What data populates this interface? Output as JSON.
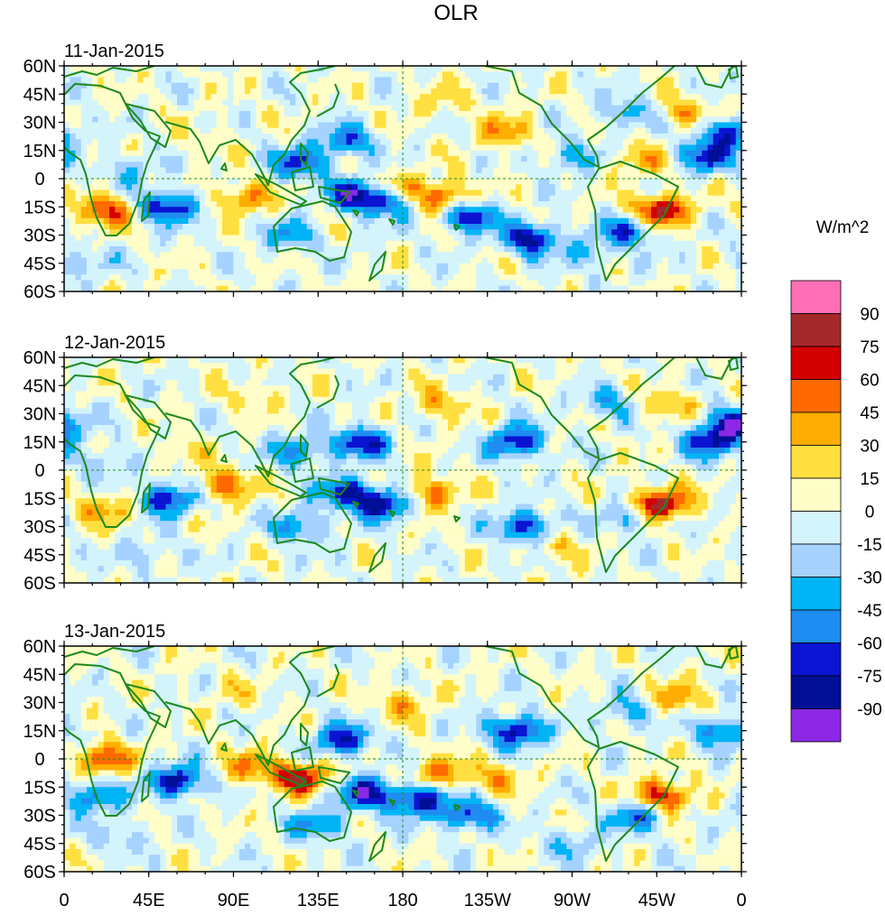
{
  "chart_data": {
    "type": "heatmap",
    "title": "OLR",
    "colorbar_title": "W/m^2",
    "colorbar_levels": [
      "90",
      "75",
      "60",
      "45",
      "30",
      "15",
      "0",
      "-15",
      "-30",
      "-45",
      "-60",
      "-75",
      "-90"
    ],
    "colorbar_colors": [
      "#ff6fb5",
      "#a5282a",
      "#d40000",
      "#ff6a00",
      "#ffad00",
      "#ffe040",
      "#fffdc8",
      "#d4f4fc",
      "#a6d2ff",
      "#00b4f5",
      "#1e8cf0",
      "#0a14d2",
      "#000f96",
      "#8c28e6"
    ],
    "x_ticks": [
      "0",
      "45E",
      "90E",
      "135E",
      "180",
      "135W",
      "90W",
      "45W",
      "0"
    ],
    "y_ticks": [
      "60N",
      "45N",
      "30N",
      "15N",
      "0",
      "15S",
      "30S",
      "45S",
      "60S"
    ],
    "xlim": [
      0,
      360
    ],
    "ylim": [
      -60,
      60
    ],
    "panels": [
      {
        "label": "11-Jan-2015",
        "seed": 11,
        "features": [
          {
            "lon": 215,
            "lat": -20,
            "v": -80
          },
          {
            "lon": 248,
            "lat": -32,
            "v": -85
          },
          {
            "lon": 175,
            "lat": -5,
            "v": 45
          },
          {
            "lon": 172,
            "lat": -12,
            "v": -70
          },
          {
            "lon": 155,
            "lat": -8,
            "v": -75
          },
          {
            "lon": 200,
            "lat": -10,
            "v": 70
          },
          {
            "lon": 96,
            "lat": -10,
            "v": 50
          },
          {
            "lon": 55,
            "lat": -15,
            "v": -80
          },
          {
            "lon": 22,
            "lat": -17,
            "v": 65
          },
          {
            "lon": 317,
            "lat": -17,
            "v": 85
          },
          {
            "lon": 300,
            "lat": -28,
            "v": -60
          },
          {
            "lon": 342,
            "lat": 12,
            "v": -70
          },
          {
            "lon": 352,
            "lat": 25,
            "v": -65
          },
          {
            "lon": 270,
            "lat": 12,
            "v": -40
          },
          {
            "lon": 305,
            "lat": 10,
            "v": 35
          },
          {
            "lon": 125,
            "lat": 8,
            "v": -65
          },
          {
            "lon": 150,
            "lat": 20,
            "v": -60
          },
          {
            "lon": 235,
            "lat": 25,
            "v": 40
          },
          {
            "lon": 300,
            "lat": 35,
            "v": -40
          },
          {
            "lon": 330,
            "lat": 35,
            "v": 40
          },
          {
            "lon": 35,
            "lat": 5,
            "v": -30
          },
          {
            "lon": 75,
            "lat": 20,
            "v": 15
          },
          {
            "lon": 120,
            "lat": -30,
            "v": -40
          },
          {
            "lon": 200,
            "lat": 40,
            "v": 20
          },
          {
            "lon": 10,
            "lat": -45,
            "v": -30
          },
          {
            "lon": 280,
            "lat": -40,
            "v": -30
          }
        ]
      },
      {
        "label": "12-Jan-2015",
        "seed": 12,
        "features": [
          {
            "lon": 170,
            "lat": -18,
            "v": -80
          },
          {
            "lon": 150,
            "lat": -12,
            "v": -70
          },
          {
            "lon": 158,
            "lat": 15,
            "v": -75
          },
          {
            "lon": 240,
            "lat": 15,
            "v": -80
          },
          {
            "lon": 245,
            "lat": -30,
            "v": -75
          },
          {
            "lon": 195,
            "lat": -12,
            "v": 55
          },
          {
            "lon": 85,
            "lat": -8,
            "v": 55
          },
          {
            "lon": 55,
            "lat": -15,
            "v": -80
          },
          {
            "lon": 22,
            "lat": -20,
            "v": 40
          },
          {
            "lon": 317,
            "lat": -18,
            "v": 90
          },
          {
            "lon": 300,
            "lat": -25,
            "v": -40
          },
          {
            "lon": 345,
            "lat": 15,
            "v": -75
          },
          {
            "lon": 355,
            "lat": 25,
            "v": -70
          },
          {
            "lon": 125,
            "lat": 10,
            "v": -50
          },
          {
            "lon": 125,
            "lat": -30,
            "v": -50
          },
          {
            "lon": 200,
            "lat": 35,
            "v": 35
          },
          {
            "lon": 320,
            "lat": 35,
            "v": 35
          },
          {
            "lon": 290,
            "lat": 35,
            "v": -40
          },
          {
            "lon": 60,
            "lat": 10,
            "v": 20
          },
          {
            "lon": 260,
            "lat": -40,
            "v": 25
          },
          {
            "lon": 20,
            "lat": 5,
            "v": -30
          },
          {
            "lon": 100,
            "lat": 40,
            "v": 20
          },
          {
            "lon": 45,
            "lat": -45,
            "v": -25
          }
        ]
      },
      {
        "label": "13-Jan-2015",
        "seed": 13,
        "features": [
          {
            "lon": 148,
            "lat": 10,
            "v": -75
          },
          {
            "lon": 160,
            "lat": -18,
            "v": -80
          },
          {
            "lon": 188,
            "lat": -22,
            "v": -80
          },
          {
            "lon": 240,
            "lat": 15,
            "v": -85
          },
          {
            "lon": 215,
            "lat": -30,
            "v": -70
          },
          {
            "lon": 200,
            "lat": -8,
            "v": 45
          },
          {
            "lon": 127,
            "lat": -10,
            "v": 75
          },
          {
            "lon": 60,
            "lat": -12,
            "v": -85
          },
          {
            "lon": 20,
            "lat": 0,
            "v": 65
          },
          {
            "lon": 15,
            "lat": -20,
            "v": -60
          },
          {
            "lon": 318,
            "lat": -20,
            "v": 80
          },
          {
            "lon": 305,
            "lat": -30,
            "v": -60
          },
          {
            "lon": 350,
            "lat": 15,
            "v": -60
          },
          {
            "lon": 300,
            "lat": 25,
            "v": -40
          },
          {
            "lon": 325,
            "lat": 32,
            "v": 40
          },
          {
            "lon": 100,
            "lat": -5,
            "v": 45
          },
          {
            "lon": 180,
            "lat": 30,
            "v": 35
          },
          {
            "lon": 230,
            "lat": -10,
            "v": 35
          },
          {
            "lon": 135,
            "lat": -35,
            "v": -50
          },
          {
            "lon": 90,
            "lat": 35,
            "v": 15
          },
          {
            "lon": 270,
            "lat": -45,
            "v": -30
          },
          {
            "lon": 30,
            "lat": -40,
            "v": -25
          }
        ]
      }
    ]
  }
}
